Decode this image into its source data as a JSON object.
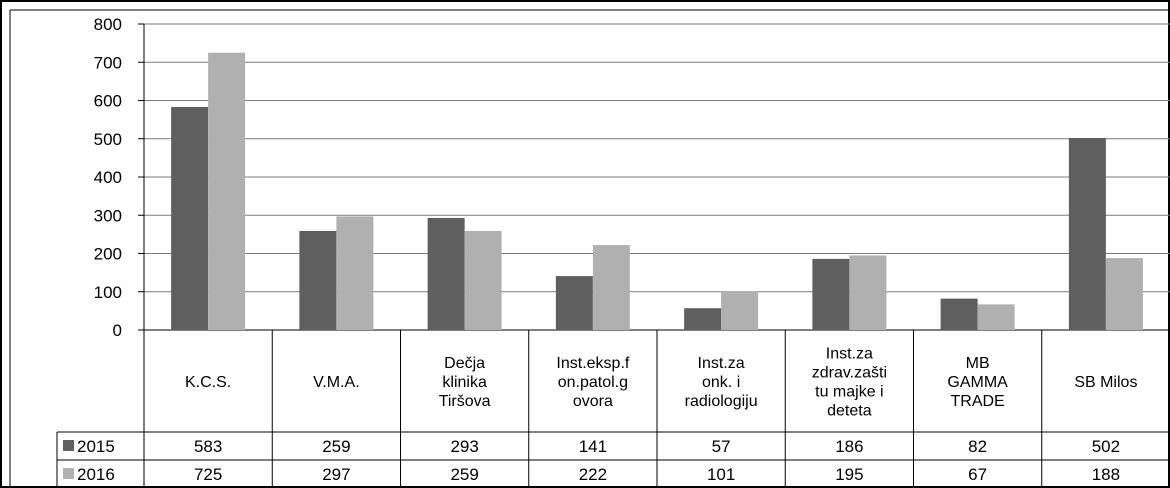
{
  "chart_data": {
    "type": "bar",
    "title": "",
    "xlabel": "",
    "ylabel": "",
    "ylim": [
      0,
      800
    ],
    "yticks": [
      "0",
      "100",
      "200",
      "300",
      "400",
      "500",
      "600",
      "700",
      "800"
    ],
    "grid": true,
    "legend": "table-left",
    "categories": [
      [
        "K.C.S."
      ],
      [
        "V.M.A."
      ],
      [
        "Dečja",
        "klinika",
        "Tiršova"
      ],
      [
        "Inst.eksp.f",
        "on.patol.g",
        "ovora"
      ],
      [
        "Inst.za",
        "onk. i",
        "radiologiju"
      ],
      [
        "Inst.za",
        "zdrav.zašti",
        "tu majke i",
        "deteta"
      ],
      [
        "MB",
        "GAMMA",
        "TRADE"
      ],
      [
        "SB Milos"
      ]
    ],
    "series": [
      {
        "name": "2015",
        "color": "#5f5f5f",
        "values": [
          583,
          259,
          293,
          141,
          57,
          186,
          82,
          502
        ],
        "labels": [
          "583",
          "259",
          "293",
          "141",
          "57",
          "186",
          "82",
          "502"
        ]
      },
      {
        "name": "2016",
        "color": "#b0b0b0",
        "values": [
          725,
          297,
          259,
          222,
          101,
          195,
          67,
          188
        ],
        "labels": [
          "725",
          "297",
          "259",
          "222",
          "101",
          "195",
          "67",
          "188"
        ]
      }
    ]
  }
}
